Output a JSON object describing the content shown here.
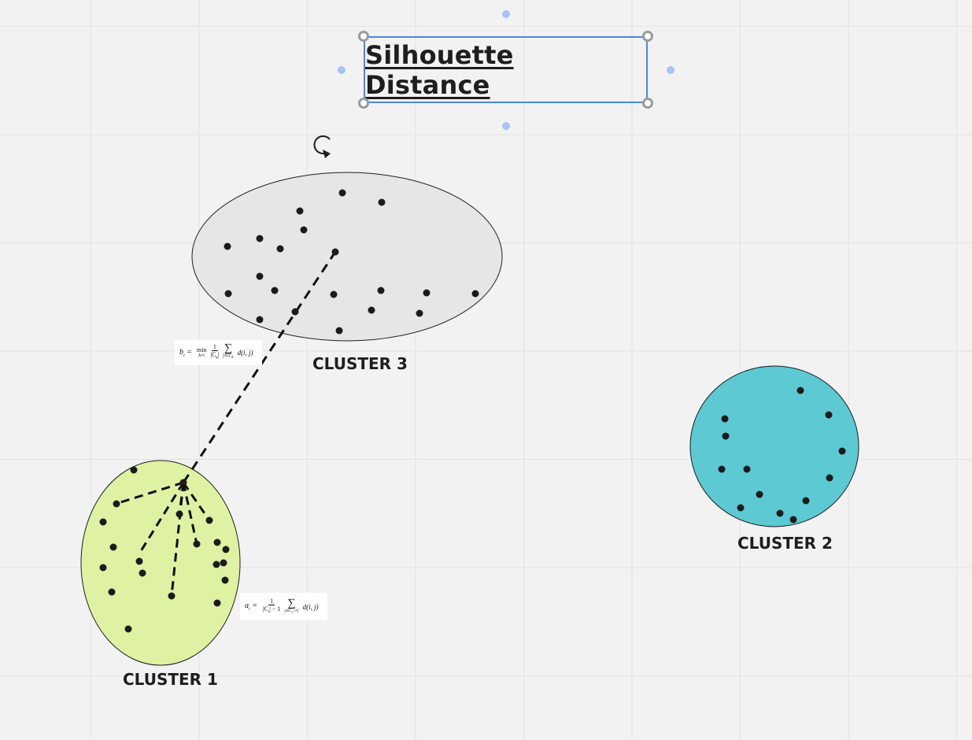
{
  "title": "Silhouette Distance",
  "colors": {
    "cluster1": "#dff2a3",
    "cluster2": "#5cc9d3",
    "cluster3": "#e6e6e6",
    "point": "#1b1b1b",
    "selection": "#4a86e8"
  },
  "icons": {
    "rotate": "rotate-icon"
  },
  "clusters": [
    {
      "id": "cluster1",
      "label": "CLUSTER 1"
    },
    {
      "id": "cluster2",
      "label": "CLUSTER 2"
    },
    {
      "id": "cluster3",
      "label": "CLUSTER 3"
    }
  ],
  "formula_a": {
    "lhs": "a",
    "lhs_sub": "i",
    "eq": " = ",
    "num": "1",
    "den": "|C",
    "den_sub": "i",
    "den_tail": "| − 1",
    "sum": "∑",
    "sum_sub": "j∈C",
    "sum_sub2": "i",
    "sum_sub3": ", i≠j",
    "rhs": "d(i, j)"
  },
  "formula_b": {
    "lhs": "b",
    "lhs_sub": "i",
    "eq": " = ",
    "min": "min",
    "min_sub": "k≠i",
    "num": "1",
    "den": "|C",
    "den_sub": "k",
    "den_tail": "|",
    "sum": "∑",
    "sum_sub": "j∈C",
    "sum_sub2": "k",
    "rhs": "d(i, j)"
  }
}
